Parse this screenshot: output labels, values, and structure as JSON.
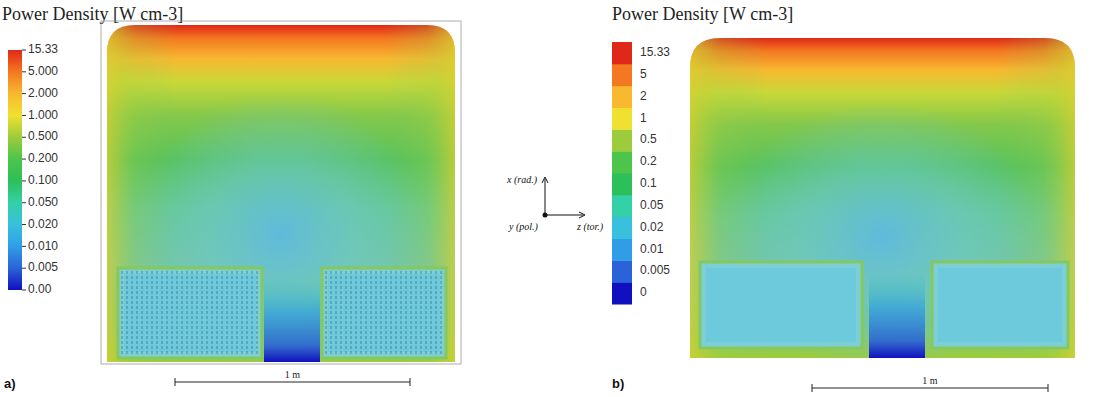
{
  "chart_data": [
    {
      "type": "heatmap",
      "title": "Power Density [W cm-3]",
      "panel_label": "a)",
      "annotations": [
        "1 m"
      ],
      "colorbar_ticks": [
        {
          "value": 0,
          "label": "0.00"
        },
        {
          "value": 0.005,
          "label": "0.005"
        },
        {
          "value": 0.01,
          "label": "0.010"
        },
        {
          "value": 0.02,
          "label": "0.020"
        },
        {
          "value": 0.05,
          "label": "0.050"
        },
        {
          "value": 0.1,
          "label": "0.100"
        },
        {
          "value": 0.2,
          "label": "0.200"
        },
        {
          "value": 0.5,
          "label": "0.500"
        },
        {
          "value": 1,
          "label": "1.000"
        },
        {
          "value": 2,
          "label": "2.000"
        },
        {
          "value": 5,
          "label": "5.000"
        },
        15.33
      ],
      "colors": [
        "#1010c0",
        "#2a63d8",
        "#2f9ee6",
        "#38c0dc",
        "#34d0a8",
        "#2dbf5a",
        "#4cc54a",
        "#9ccc3c",
        "#f0e030",
        "#f8b830",
        "#f47820",
        "#e02818"
      ]
    },
    {
      "type": "heatmap",
      "title": "Power Density [W cm-3]",
      "panel_label": "b)",
      "annotations": [
        "1 m"
      ],
      "colorbar_ticks": [
        0,
        0.005,
        0.01,
        0.02,
        0.05,
        0.1,
        0.2,
        0.5,
        1,
        2,
        5,
        15.33
      ],
      "colors": [
        "#1010c0",
        "#2a63d8",
        "#2f9ee6",
        "#38c0dc",
        "#34d0a8",
        "#2dbf5a",
        "#4cc54a",
        "#9ccc3c",
        "#f0e030",
        "#f8b830",
        "#f47820",
        "#e02818"
      ]
    }
  ],
  "triad_labels": [
    "x (rad.)",
    "y (pol.)",
    "z (tor.)"
  ]
}
